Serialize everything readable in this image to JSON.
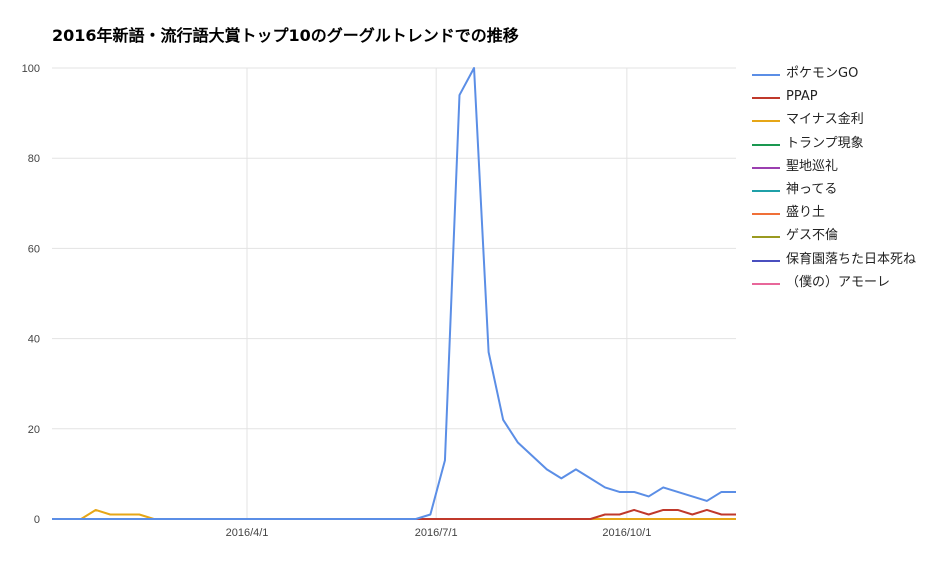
{
  "chart_data": {
    "type": "line",
    "title": "2016年新語・流行語大賞トップ10のグーグルトレンドでの推移",
    "ylim": [
      0,
      100
    ],
    "y_ticks": [
      0,
      20,
      40,
      60,
      80,
      100
    ],
    "x_ticks": [
      {
        "label": "2016/4/1",
        "index": 13.4
      },
      {
        "label": "2016/7/1",
        "index": 26.4
      },
      {
        "label": "2016/10/1",
        "index": 39.5
      }
    ],
    "x_count": 48,
    "grid": true,
    "legend_position": "right",
    "series": [
      {
        "name": "ポケモンGO",
        "color": "#5b8ee6",
        "values": [
          0,
          0,
          0,
          0,
          0,
          0,
          0,
          0,
          0,
          0,
          0,
          0,
          0,
          0,
          0,
          0,
          0,
          0,
          0,
          0,
          0,
          0,
          0,
          0,
          0,
          0,
          1,
          13,
          94,
          100,
          37,
          22,
          17,
          14,
          11,
          9,
          11,
          9,
          7,
          6,
          6,
          5,
          7,
          6,
          5,
          4,
          6,
          6
        ]
      },
      {
        "name": "PPAP",
        "color": "#c0392b",
        "values": [
          0,
          0,
          0,
          0,
          0,
          0,
          0,
          0,
          0,
          0,
          0,
          0,
          0,
          0,
          0,
          0,
          0,
          0,
          0,
          0,
          0,
          0,
          0,
          0,
          0,
          0,
          0,
          0,
          0,
          0,
          0,
          0,
          0,
          0,
          0,
          0,
          0,
          0,
          1,
          1,
          2,
          1,
          2,
          2,
          1,
          2,
          1,
          1
        ]
      },
      {
        "name": "マイナス金利",
        "color": "#e6a617",
        "values": [
          0,
          0,
          0,
          2,
          1,
          1,
          1,
          0,
          0,
          0,
          0,
          0,
          0,
          0,
          0,
          0,
          0,
          0,
          0,
          0,
          0,
          0,
          0,
          0,
          0,
          0,
          0,
          0,
          0,
          0,
          0,
          0,
          0,
          0,
          0,
          0,
          0,
          0,
          0,
          0,
          0,
          0,
          0,
          0,
          0,
          0,
          0,
          0
        ]
      },
      {
        "name": "トランプ現象",
        "color": "#1a9850",
        "values": [
          0,
          0,
          0,
          0,
          0,
          0,
          0,
          0,
          0,
          0,
          0,
          0,
          0,
          0,
          0,
          0,
          0,
          0,
          0,
          0,
          0,
          0,
          0,
          0,
          0,
          0,
          0,
          0,
          0,
          0,
          0,
          0,
          0,
          0,
          0,
          0,
          0,
          0,
          0,
          0,
          0,
          0,
          0,
          0,
          0,
          0,
          0,
          0
        ]
      },
      {
        "name": "聖地巡礼",
        "color": "#9b3fb0",
        "values": [
          0,
          0,
          0,
          0,
          0,
          0,
          0,
          0,
          0,
          0,
          0,
          0,
          0,
          0,
          0,
          0,
          0,
          0,
          0,
          0,
          0,
          0,
          0,
          0,
          0,
          0,
          0,
          0,
          0,
          0,
          0,
          0,
          0,
          0,
          0,
          0,
          0,
          0,
          0,
          0,
          0,
          0,
          0,
          0,
          0,
          0,
          0,
          0
        ]
      },
      {
        "name": "神ってる",
        "color": "#1fa0a8",
        "values": [
          0,
          0,
          0,
          0,
          0,
          0,
          0,
          0,
          0,
          0,
          0,
          0,
          0,
          0,
          0,
          0,
          0,
          0,
          0,
          0,
          0,
          0,
          0,
          0,
          0,
          0,
          0,
          0,
          0,
          0,
          0,
          0,
          0,
          0,
          0,
          0,
          0,
          0,
          0,
          0,
          0,
          0,
          0,
          0,
          0,
          0,
          0,
          0
        ]
      },
      {
        "name": "盛り土",
        "color": "#f07038",
        "values": [
          0,
          0,
          0,
          0,
          0,
          0,
          0,
          0,
          0,
          0,
          0,
          0,
          0,
          0,
          0,
          0,
          0,
          0,
          0,
          0,
          0,
          0,
          0,
          0,
          0,
          0,
          0,
          0,
          0,
          0,
          0,
          0,
          0,
          0,
          0,
          0,
          0,
          0,
          0,
          0,
          0,
          0,
          0,
          0,
          0,
          0,
          0,
          0
        ]
      },
      {
        "name": "ゲス不倫",
        "color": "#9a9a20",
        "values": [
          0,
          0,
          0,
          0,
          0,
          0,
          0,
          0,
          0,
          0,
          0,
          0,
          0,
          0,
          0,
          0,
          0,
          0,
          0,
          0,
          0,
          0,
          0,
          0,
          0,
          0,
          0,
          0,
          0,
          0,
          0,
          0,
          0,
          0,
          0,
          0,
          0,
          0,
          0,
          0,
          0,
          0,
          0,
          0,
          0,
          0,
          0,
          0
        ]
      },
      {
        "name": "保育園落ちた日本死ね",
        "color": "#4a4fbf",
        "values": [
          0,
          0,
          0,
          0,
          0,
          0,
          0,
          0,
          0,
          0,
          0,
          0,
          0,
          0,
          0,
          0,
          0,
          0,
          0,
          0,
          0,
          0,
          0,
          0,
          0,
          0,
          0,
          0,
          0,
          0,
          0,
          0,
          0,
          0,
          0,
          0,
          0,
          0,
          0,
          0,
          0,
          0,
          0,
          0,
          0,
          0,
          0,
          0
        ]
      },
      {
        "name": "（僕の）アモーレ",
        "color": "#e8679a",
        "values": [
          0,
          0,
          0,
          0,
          0,
          0,
          0,
          0,
          0,
          0,
          0,
          0,
          0,
          0,
          0,
          0,
          0,
          0,
          0,
          0,
          0,
          0,
          0,
          0,
          0,
          0,
          0,
          0,
          0,
          0,
          0,
          0,
          0,
          0,
          0,
          0,
          0,
          0,
          0,
          0,
          0,
          0,
          0,
          0,
          0,
          0,
          0,
          0
        ]
      }
    ]
  }
}
